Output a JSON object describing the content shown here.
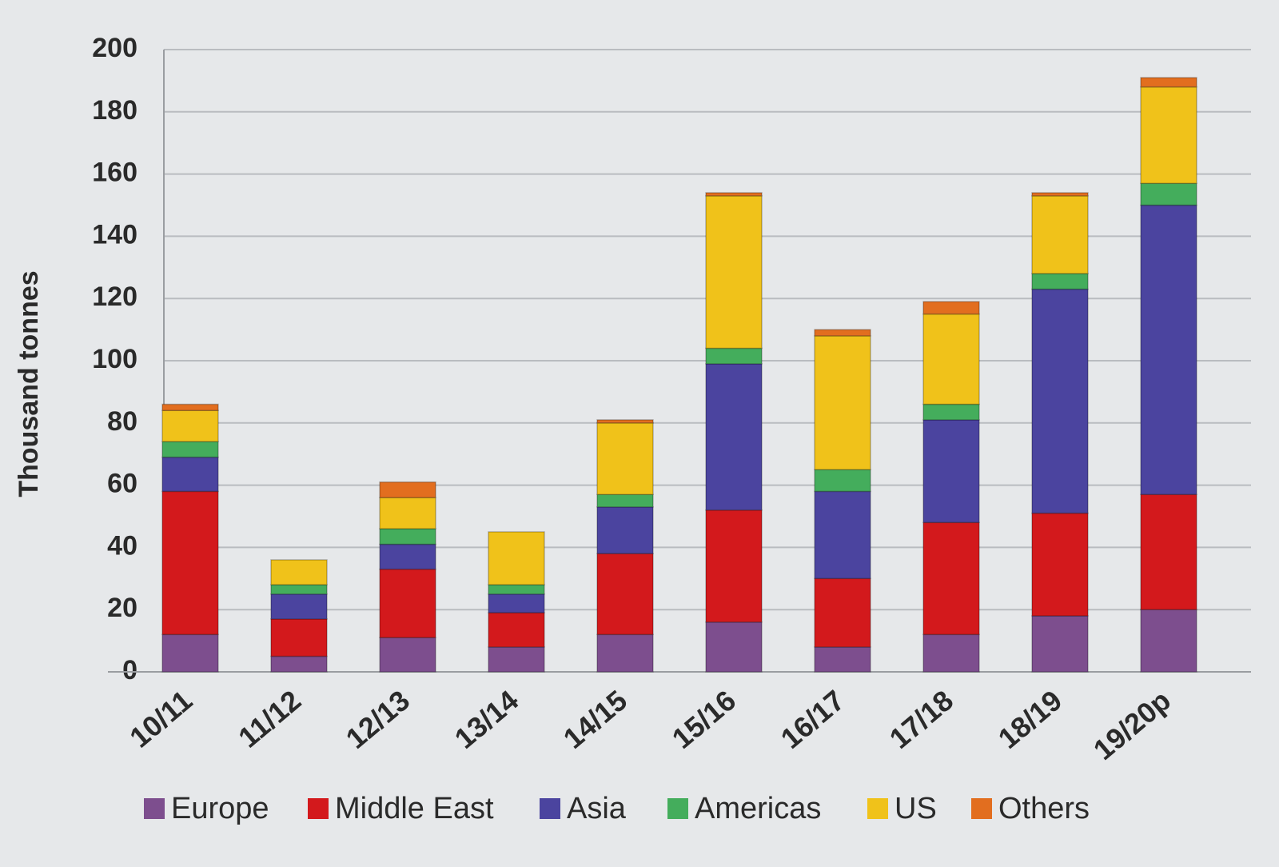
{
  "chart_data": {
    "type": "stacked_bar",
    "y_label": "Thousand tonnes",
    "categories": [
      "10/11",
      "11/12",
      "12/13",
      "13/14",
      "14/15",
      "15/16",
      "16/17",
      "17/18",
      "18/19",
      "19/20p"
    ],
    "series": [
      {
        "name": "Europe",
        "color": "#7d4e8e",
        "values": [
          12,
          5,
          11,
          8,
          12,
          16,
          8,
          12,
          18,
          20
        ]
      },
      {
        "name": "Middle East",
        "color": "#d3191c",
        "values": [
          46,
          12,
          22,
          11,
          26,
          36,
          22,
          36,
          33,
          37
        ]
      },
      {
        "name": "Asia",
        "color": "#4b449f",
        "values": [
          11,
          8,
          8,
          6,
          15,
          47,
          28,
          33,
          72,
          93
        ]
      },
      {
        "name": "Americas",
        "color": "#44ad5c",
        "values": [
          5,
          3,
          5,
          3,
          4,
          5,
          7,
          5,
          5,
          7
        ]
      },
      {
        "name": "US",
        "color": "#f0c21a",
        "values": [
          10,
          8,
          10,
          17,
          23,
          49,
          43,
          29,
          25,
          31
        ]
      },
      {
        "name": "Others",
        "color": "#e26e1f",
        "values": [
          2,
          0,
          5,
          0,
          1,
          1,
          2,
          4,
          1,
          3
        ]
      }
    ],
    "ylim": [
      0,
      200
    ],
    "yticks": [
      0,
      20,
      40,
      60,
      80,
      100,
      120,
      140,
      160,
      180,
      200
    ],
    "grid": true
  }
}
